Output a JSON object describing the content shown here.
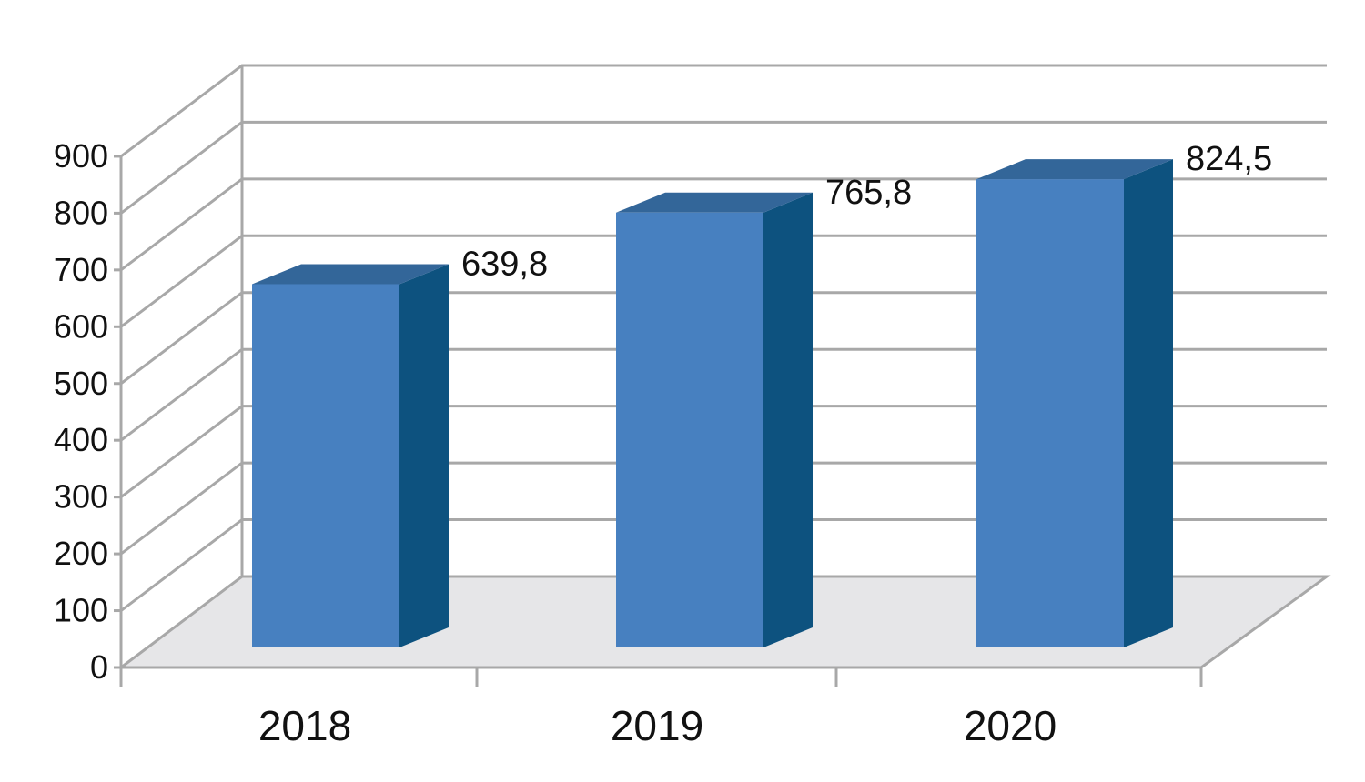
{
  "chart_data": {
    "type": "bar",
    "style": "3d-column",
    "title": "",
    "xlabel": "",
    "ylabel": "",
    "categories": [
      "2018",
      "2019",
      "2020"
    ],
    "values": [
      639.8,
      765.8,
      824.5
    ],
    "value_labels": [
      "639,8",
      "765,8",
      "824,5"
    ],
    "ylim": [
      0,
      900
    ],
    "yticks": [
      "0",
      "100",
      "200",
      "300",
      "400",
      "500",
      "600",
      "700",
      "800",
      "900"
    ],
    "grid": true,
    "legend": "none",
    "colors": {
      "bar_front": "#4780C0",
      "bar_top": "#336699",
      "bar_side": "#0D527F",
      "floor": "#E6E6E8",
      "grid": "#A8A8A8"
    }
  }
}
